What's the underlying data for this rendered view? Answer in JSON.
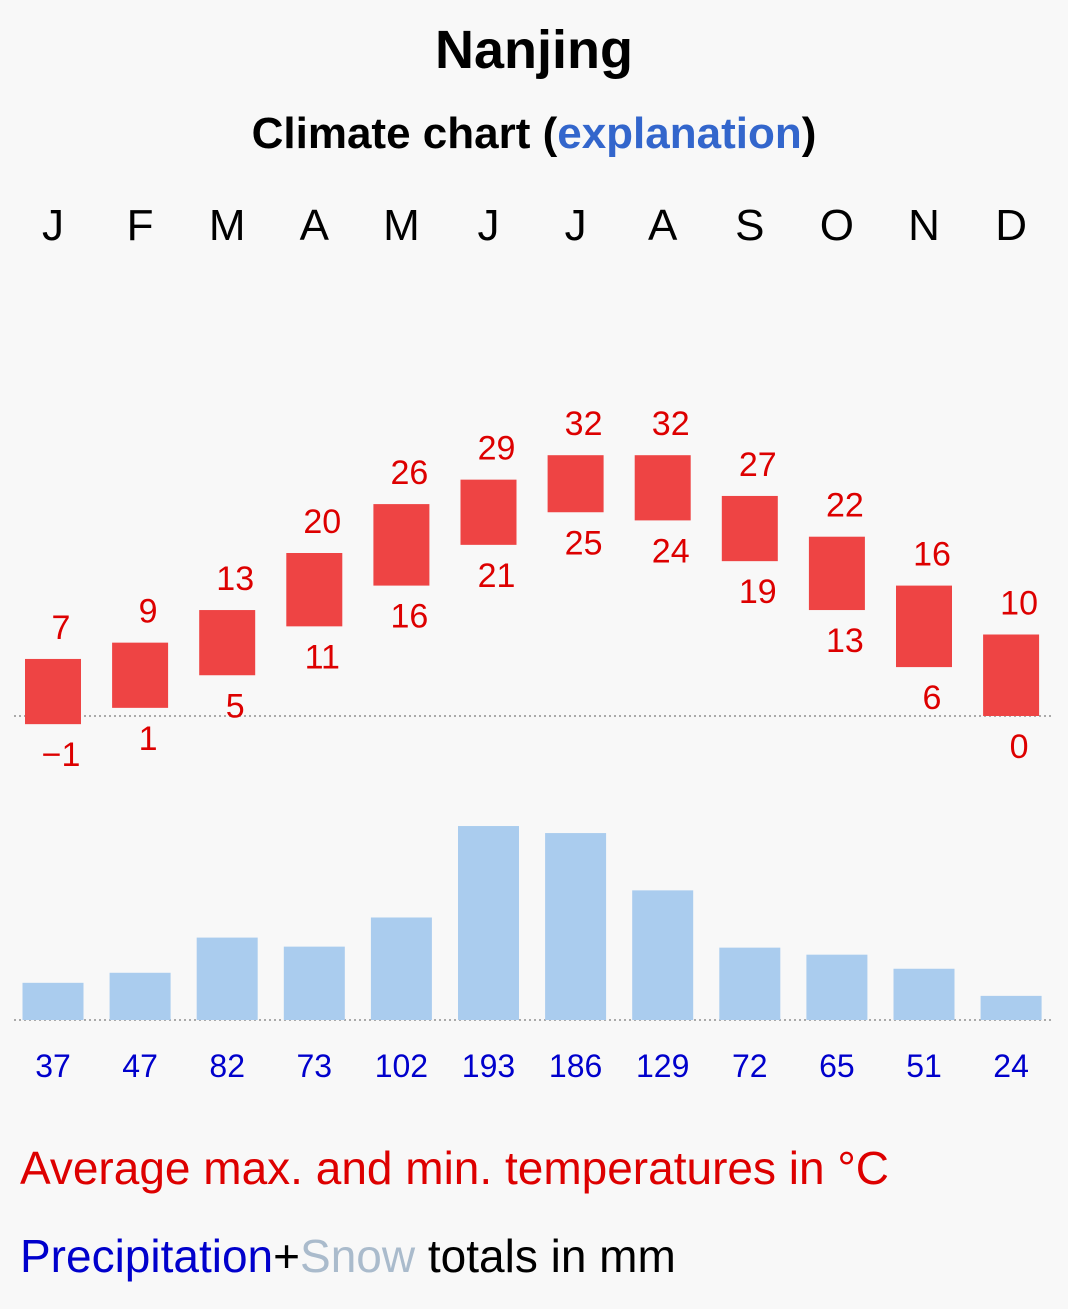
{
  "header": {
    "city": "Nanjing",
    "subtitle_prefix": "Climate chart (",
    "subtitle_link": "explanation",
    "subtitle_suffix": ")"
  },
  "legend": {
    "temperature": "Average max. and min. temperatures in °C",
    "precipitation": "Precipitation",
    "plus": "+",
    "snow": "Snow",
    "totals": " totals in mm"
  },
  "colors": {
    "temp_bar": "#ee4444",
    "temp_text": "#dd0000",
    "precip_bar": "#aaccee",
    "precip_text": "#0000cc",
    "link": "#3366cc"
  },
  "chart_data": {
    "type": "bar",
    "title": "Nanjing",
    "subtitle": "Climate chart (explanation)",
    "categories": [
      "J",
      "F",
      "M",
      "A",
      "M",
      "J",
      "J",
      "A",
      "S",
      "O",
      "N",
      "D"
    ],
    "series": [
      {
        "name": "Average max. temperature (°C)",
        "values": [
          7,
          9,
          13,
          20,
          26,
          29,
          32,
          32,
          27,
          22,
          16,
          10
        ]
      },
      {
        "name": "Average min. temperature (°C)",
        "values": [
          -1,
          1,
          5,
          11,
          16,
          21,
          25,
          24,
          19,
          13,
          6,
          0
        ]
      },
      {
        "name": "Precipitation totals (mm)",
        "values": [
          37,
          47,
          82,
          73,
          102,
          193,
          186,
          129,
          72,
          65,
          51,
          24
        ]
      }
    ],
    "min_labels": [
      "−1",
      "1",
      "5",
      "11",
      "16",
      "21",
      "25",
      "24",
      "19",
      "13",
      "6",
      "0"
    ],
    "temp_unit": "°C",
    "precip_unit": "mm"
  }
}
